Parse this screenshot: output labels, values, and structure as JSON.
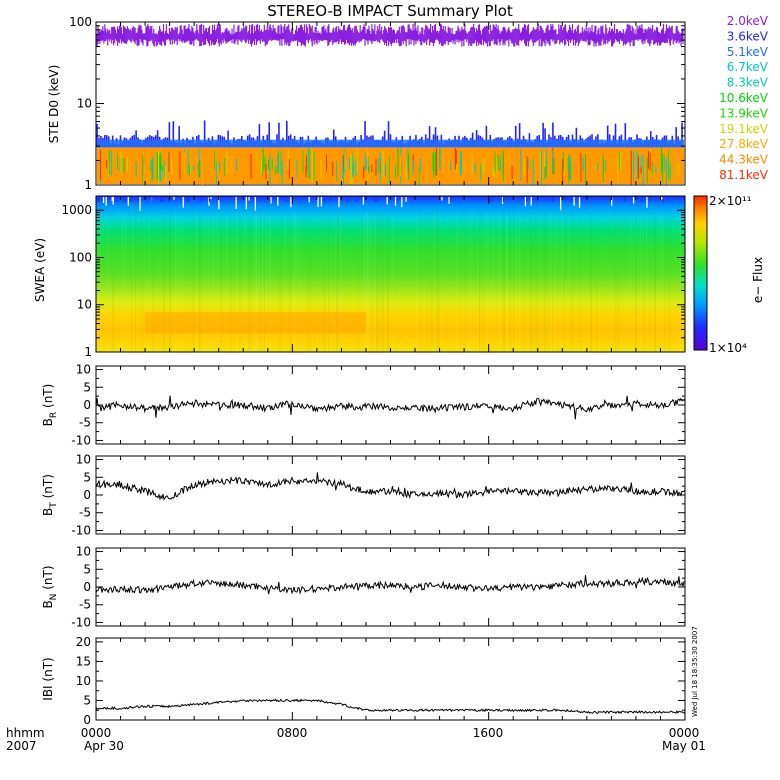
{
  "title": "STEREO-B IMPACT Summary Plot",
  "colors": {
    "energy_channels": [
      "#8a1fe0",
      "#2323ff",
      "#1f6eff",
      "#00c8c8",
      "#00d2aa",
      "#00d800",
      "#22d800",
      "#c8d800",
      "#ffaa00",
      "#ff8a00",
      "#ff2a00"
    ],
    "ste_dominant": "#ff9900",
    "trace": "#000000"
  },
  "x_axis": {
    "tick_labels": [
      "0000",
      "0800",
      "1600",
      "0000"
    ],
    "date_labels": [
      "Apr 30",
      "May 01"
    ],
    "row_label_top": "hhmm",
    "row_label_bottom": "2007",
    "hours": [
      0,
      24
    ]
  },
  "side_note": "Wed Jul 18 18:35:30 2007",
  "chart_data": [
    {
      "type": "line",
      "panel": "ste",
      "ylabel": "STE D0 (keV)",
      "y_scale": "log",
      "ylim": [
        1,
        100
      ],
      "y_ticks": [
        "1",
        "10",
        "100"
      ],
      "legend_position": "right",
      "series": [
        {
          "name": "2.0keV",
          "level": 70,
          "range": [
            50,
            95
          ]
        },
        {
          "name": "3.6keV",
          "level": 3.6,
          "range": [
            2.5,
            6
          ]
        },
        {
          "name": "5.1keV",
          "level": 3.2,
          "range": [
            2.5,
            5
          ]
        },
        {
          "name": "6.7keV",
          "level": 2.2,
          "range": [
            1,
            3
          ]
        },
        {
          "name": "8.3keV",
          "level": 2.0,
          "range": [
            1,
            3
          ]
        },
        {
          "name": "10.6keV",
          "level": 2.0,
          "range": [
            1,
            3
          ]
        },
        {
          "name": "13.9keV",
          "level": 2.0,
          "range": [
            1,
            3
          ]
        },
        {
          "name": "19.1keV",
          "level": 2.0,
          "range": [
            1,
            3
          ]
        },
        {
          "name": "27.8keV",
          "level": 2.0,
          "range": [
            1,
            3
          ]
        },
        {
          "name": "44.3keV",
          "level": 2.0,
          "range": [
            1,
            3
          ]
        },
        {
          "name": "81.1keV",
          "level": 1.5,
          "range": [
            1,
            2
          ]
        }
      ]
    },
    {
      "type": "heatmap",
      "panel": "swea",
      "ylabel": "SWEA (eV)",
      "y_scale": "log",
      "ylim": [
        1,
        2000
      ],
      "y_ticks": [
        "1",
        "10",
        "100",
        "1000"
      ],
      "colorbar": {
        "label": "e− Flux",
        "max": "2×10¹¹",
        "min": "1×10⁴",
        "scale": "log"
      },
      "energy_profile": [
        {
          "energy_eV": 1,
          "log_flux": 10.3
        },
        {
          "energy_eV": 3,
          "log_flux": 10.4
        },
        {
          "energy_eV": 6,
          "log_flux": 9.6
        },
        {
          "energy_eV": 15,
          "log_flux": 8.6
        },
        {
          "energy_eV": 60,
          "log_flux": 8.0
        },
        {
          "energy_eV": 200,
          "log_flux": 7.3
        },
        {
          "energy_eV": 500,
          "log_flux": 6.4
        },
        {
          "energy_eV": 1000,
          "log_flux": 5.2
        },
        {
          "energy_eV": 1800,
          "log_flux": 4.3
        }
      ],
      "enhancement_interval_hours": [
        2,
        11
      ]
    },
    {
      "type": "line",
      "panel": "br",
      "ylabel_main": "B",
      "ylabel_sub": "R",
      "ylabel_unit": "(nT)",
      "ylim": [
        -11,
        11
      ],
      "y_ticks": [
        -10,
        -5,
        0,
        5,
        10
      ],
      "x": [
        0,
        1,
        2,
        3,
        4,
        5,
        6,
        7,
        8,
        9,
        10,
        11,
        12,
        13,
        14,
        15,
        16,
        17,
        18,
        19,
        20,
        21,
        22,
        23,
        24
      ],
      "values": [
        -1,
        0,
        -1,
        -0.5,
        0.5,
        0,
        0,
        -1,
        0.5,
        -1,
        -0.5,
        -0.5,
        -0.5,
        -1,
        -1,
        -0.5,
        0,
        -1,
        1,
        0,
        -1,
        0,
        0.5,
        0,
        1
      ]
    },
    {
      "type": "line",
      "panel": "bt",
      "ylabel_main": "B",
      "ylabel_sub": "T",
      "ylabel_unit": "(nT)",
      "ylim": [
        -11,
        11
      ],
      "y_ticks": [
        -10,
        -5,
        0,
        5,
        10
      ],
      "x": [
        0,
        1,
        2,
        3,
        4,
        5,
        6,
        7,
        8,
        9,
        10,
        11,
        12,
        13,
        14,
        15,
        16,
        17,
        18,
        19,
        20,
        21,
        22,
        23,
        24
      ],
      "values": [
        3,
        3,
        1,
        -1,
        3,
        4,
        4,
        3,
        4,
        4,
        3,
        1,
        1,
        0,
        0.5,
        0,
        1,
        1,
        0.5,
        1,
        1.5,
        2,
        1,
        1,
        0.5
      ]
    },
    {
      "type": "line",
      "panel": "bn",
      "ylabel_main": "B",
      "ylabel_sub": "N",
      "ylabel_unit": "(nT)",
      "ylim": [
        -11,
        11
      ],
      "y_ticks": [
        -10,
        -5,
        0,
        5,
        10
      ],
      "x": [
        0,
        1,
        2,
        3,
        4,
        5,
        6,
        7,
        8,
        9,
        10,
        11,
        12,
        13,
        14,
        15,
        16,
        17,
        18,
        19,
        20,
        21,
        22,
        23,
        24
      ],
      "values": [
        -1,
        -0.5,
        -1,
        0,
        1,
        1,
        0.5,
        0,
        -1,
        -0.5,
        0,
        0.5,
        0.5,
        0,
        0.5,
        0,
        -0.5,
        0,
        0,
        0.5,
        1,
        1,
        1.5,
        1.5,
        1
      ]
    },
    {
      "type": "line",
      "panel": "bmag",
      "ylabel": "IBI (nT)",
      "ylim": [
        0,
        21
      ],
      "y_ticks": [
        0,
        5,
        10,
        15,
        20
      ],
      "x": [
        0,
        1,
        2,
        3,
        4,
        5,
        6,
        7,
        8,
        9,
        10,
        11,
        12,
        13,
        14,
        15,
        16,
        17,
        18,
        19,
        20,
        21,
        22,
        23,
        24
      ],
      "values": [
        3,
        3,
        3.5,
        3.5,
        4,
        4.5,
        5,
        5,
        5,
        5,
        4,
        2.5,
        2.5,
        2.5,
        2.5,
        2.5,
        2.5,
        2.5,
        2.5,
        2.5,
        2,
        2,
        2,
        2,
        2
      ]
    }
  ]
}
